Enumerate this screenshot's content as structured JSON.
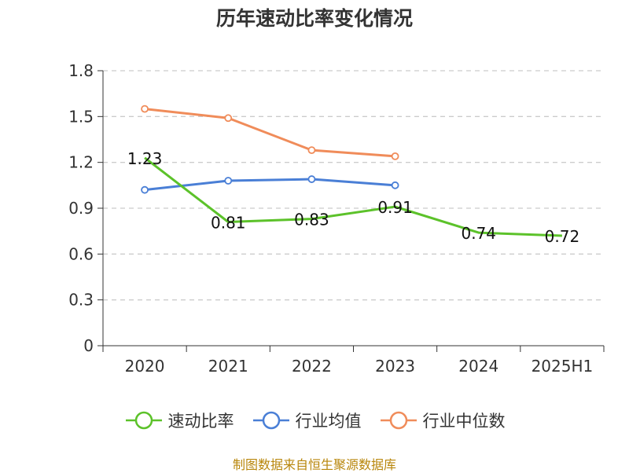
{
  "chart_data": {
    "type": "line",
    "title": "历年速动比率变化情况",
    "categories": [
      "2020",
      "2021",
      "2022",
      "2023",
      "2024",
      "2025H1"
    ],
    "ylim": [
      0,
      1.8
    ],
    "yticks": [
      "0",
      "0.3",
      "0.6",
      "0.9",
      "1.2",
      "1.5",
      "1.8"
    ],
    "grid": true,
    "legend_position": "bottom",
    "series": [
      {
        "name": "速动比率",
        "color": "#5cc22a",
        "values": [
          1.23,
          0.81,
          0.83,
          0.91,
          0.74,
          0.72
        ],
        "labels": [
          "1.23",
          "0.81",
          "0.83",
          "0.91",
          "0.74",
          "0.72"
        ]
      },
      {
        "name": "行业均值",
        "color": "#4a7fd6",
        "values": [
          1.02,
          1.08,
          1.09,
          1.05,
          null,
          null
        ]
      },
      {
        "name": "行业中位数",
        "color": "#f08c5a",
        "values": [
          1.55,
          1.49,
          1.28,
          1.24,
          null,
          null
        ]
      }
    ]
  },
  "source_note": "制图数据来自恒生聚源数据库"
}
